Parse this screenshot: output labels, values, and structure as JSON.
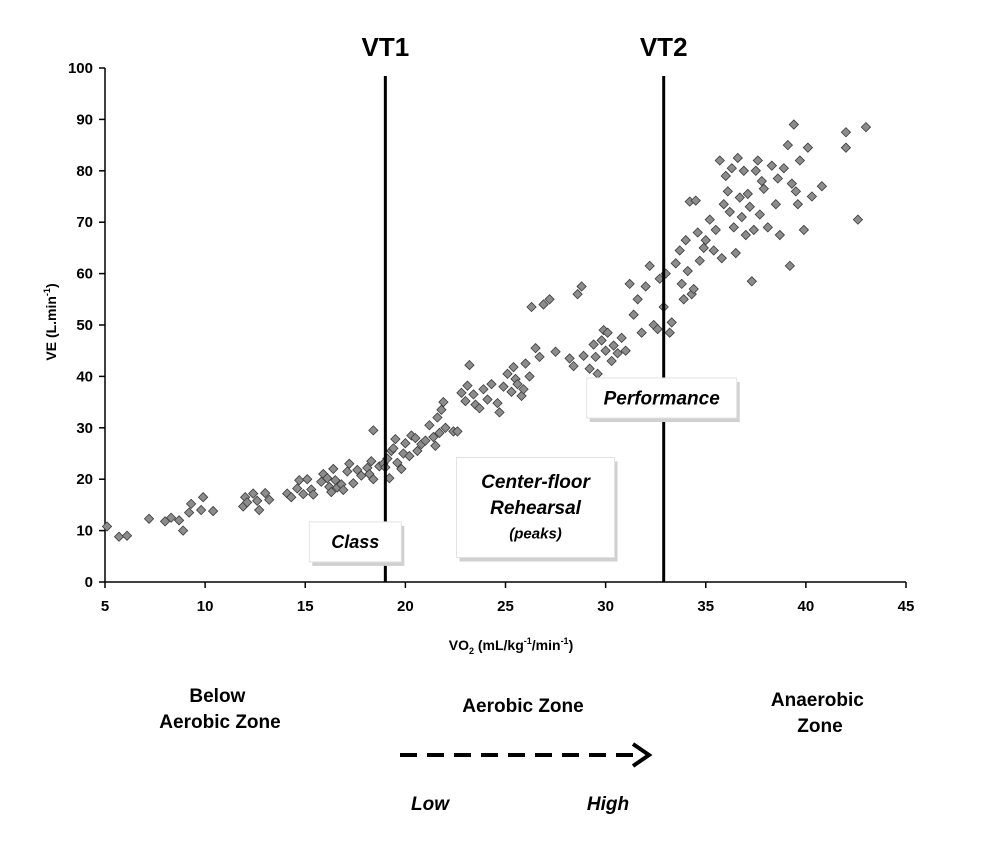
{
  "chart_data": {
    "type": "scatter",
    "xlabel": {
      "base": "VO",
      "sub": "2",
      "rest": " (mL/kg",
      "sup1": "-1",
      "rest2": "/min",
      "sup2": "-1",
      "end": ")"
    },
    "ylabel": {
      "base": "VE (L.min",
      "sup": "-1",
      "end": ")"
    },
    "xlim": [
      5,
      45
    ],
    "ylim": [
      0,
      100
    ],
    "x_ticks": [
      5,
      10,
      15,
      20,
      25,
      30,
      35,
      40,
      45
    ],
    "y_ticks": [
      0,
      10,
      20,
      30,
      40,
      50,
      60,
      70,
      80,
      90,
      100
    ],
    "marker_color": "#8c8c8c",
    "thresholds": [
      {
        "label": "VT1",
        "x": 19.0
      },
      {
        "label": "VT2",
        "x": 32.9
      }
    ],
    "annotations": [
      {
        "lines": [
          "Class"
        ],
        "x": 17.5,
        "y": 7.8
      },
      {
        "lines": [
          "Center-floor",
          "Rehearsal",
          "(peaks)"
        ],
        "x": 26.5,
        "y": 14.5
      },
      {
        "lines": [
          "Performance"
        ],
        "x": 32.8,
        "y": 35.8
      }
    ],
    "zones": [
      {
        "lines": [
          "Below",
          "Aerobic Zone"
        ]
      },
      {
        "lines": [
          "Aerobic Zone"
        ]
      },
      {
        "lines": [
          "Anaerobic",
          "Zone"
        ]
      }
    ],
    "intensity_arrow": {
      "low": "Low",
      "high": "High"
    },
    "points": [
      [
        5.1,
        10.8
      ],
      [
        5.7,
        8.8
      ],
      [
        6.1,
        9.0
      ],
      [
        7.2,
        12.3
      ],
      [
        8.0,
        11.8
      ],
      [
        8.3,
        12.5
      ],
      [
        8.7,
        12.0
      ],
      [
        8.9,
        10.0
      ],
      [
        9.2,
        13.5
      ],
      [
        9.3,
        15.2
      ],
      [
        9.8,
        14.0
      ],
      [
        9.9,
        16.5
      ],
      [
        10.4,
        13.8
      ],
      [
        11.9,
        14.7
      ],
      [
        12.0,
        16.5
      ],
      [
        12.1,
        15.5
      ],
      [
        12.4,
        17.2
      ],
      [
        12.6,
        15.8
      ],
      [
        12.7,
        14.0
      ],
      [
        13.0,
        17.3
      ],
      [
        13.2,
        16.0
      ],
      [
        14.1,
        17.2
      ],
      [
        14.3,
        16.5
      ],
      [
        14.6,
        18.2
      ],
      [
        14.7,
        19.8
      ],
      [
        14.9,
        17.1
      ],
      [
        15.1,
        20.0
      ],
      [
        15.3,
        18.0
      ],
      [
        15.4,
        17.0
      ],
      [
        15.8,
        19.5
      ],
      [
        15.9,
        21.0
      ],
      [
        16.1,
        20.2
      ],
      [
        16.2,
        18.5
      ],
      [
        16.3,
        17.5
      ],
      [
        16.4,
        22.0
      ],
      [
        16.5,
        19.8
      ],
      [
        16.6,
        18.4
      ],
      [
        16.8,
        19.0
      ],
      [
        16.9,
        17.9
      ],
      [
        17.1,
        21.5
      ],
      [
        17.2,
        23.0
      ],
      [
        17.4,
        19.2
      ],
      [
        17.6,
        21.8
      ],
      [
        17.8,
        20.7
      ],
      [
        18.1,
        22.2
      ],
      [
        18.2,
        21.0
      ],
      [
        18.3,
        23.5
      ],
      [
        18.4,
        20.0
      ],
      [
        18.4,
        29.5
      ],
      [
        18.7,
        22.5
      ],
      [
        18.9,
        23.0
      ],
      [
        19.0,
        22.3
      ],
      [
        19.1,
        24.0
      ],
      [
        19.2,
        20.2
      ],
      [
        19.3,
        25.5
      ],
      [
        19.4,
        26.0
      ],
      [
        19.5,
        27.8
      ],
      [
        19.6,
        23.2
      ],
      [
        19.8,
        22.0
      ],
      [
        19.9,
        25.0
      ],
      [
        20.0,
        27.0
      ],
      [
        20.2,
        24.5
      ],
      [
        20.3,
        28.5
      ],
      [
        20.5,
        28.0
      ],
      [
        20.6,
        25.5
      ],
      [
        20.8,
        26.8
      ],
      [
        21.0,
        27.5
      ],
      [
        21.2,
        30.5
      ],
      [
        21.4,
        28.2
      ],
      [
        21.5,
        26.5
      ],
      [
        21.6,
        32.0
      ],
      [
        21.7,
        29.0
      ],
      [
        21.8,
        33.5
      ],
      [
        21.9,
        35.0
      ],
      [
        22.0,
        30.0
      ],
      [
        22.4,
        29.3
      ],
      [
        22.6,
        29.3
      ],
      [
        22.8,
        36.8
      ],
      [
        23.0,
        35.2
      ],
      [
        23.1,
        38.2
      ],
      [
        23.2,
        42.2
      ],
      [
        23.4,
        36.5
      ],
      [
        23.5,
        34.5
      ],
      [
        23.7,
        33.8
      ],
      [
        23.9,
        37.5
      ],
      [
        24.1,
        35.5
      ],
      [
        24.3,
        38.5
      ],
      [
        24.6,
        34.8
      ],
      [
        24.7,
        33.0
      ],
      [
        24.9,
        38.0
      ],
      [
        25.1,
        40.5
      ],
      [
        25.3,
        37.0
      ],
      [
        25.4,
        41.8
      ],
      [
        25.5,
        39.5
      ],
      [
        25.6,
        38.5
      ],
      [
        25.8,
        36.2
      ],
      [
        25.9,
        37.5
      ],
      [
        26.0,
        42.5
      ],
      [
        26.2,
        40.0
      ],
      [
        26.3,
        53.5
      ],
      [
        26.5,
        45.5
      ],
      [
        26.7,
        43.8
      ],
      [
        26.9,
        54.0
      ],
      [
        27.2,
        55.0
      ],
      [
        27.5,
        44.8
      ],
      [
        28.2,
        43.5
      ],
      [
        28.4,
        42.0
      ],
      [
        28.6,
        56.0
      ],
      [
        28.8,
        57.5
      ],
      [
        28.9,
        44.0
      ],
      [
        29.2,
        41.5
      ],
      [
        29.4,
        46.2
      ],
      [
        29.5,
        43.8
      ],
      [
        29.6,
        40.5
      ],
      [
        29.8,
        47.0
      ],
      [
        29.9,
        49.0
      ],
      [
        30.0,
        45.0
      ],
      [
        30.1,
        48.5
      ],
      [
        30.3,
        43.0
      ],
      [
        30.4,
        46.0
      ],
      [
        30.6,
        44.5
      ],
      [
        30.8,
        47.5
      ],
      [
        31.0,
        45.0
      ],
      [
        31.2,
        58.0
      ],
      [
        31.4,
        52.0
      ],
      [
        31.6,
        55.0
      ],
      [
        31.8,
        48.5
      ],
      [
        32.0,
        57.5
      ],
      [
        32.2,
        61.5
      ],
      [
        32.4,
        50.0
      ],
      [
        32.6,
        49.2
      ],
      [
        32.7,
        59.0
      ],
      [
        32.9,
        53.5
      ],
      [
        33.0,
        60.0
      ],
      [
        33.2,
        48.5
      ],
      [
        33.3,
        50.5
      ],
      [
        33.5,
        62.0
      ],
      [
        33.7,
        64.5
      ],
      [
        33.8,
        58.0
      ],
      [
        33.9,
        55.0
      ],
      [
        34.0,
        66.5
      ],
      [
        34.1,
        60.5
      ],
      [
        34.2,
        74.0
      ],
      [
        34.3,
        56.0
      ],
      [
        34.4,
        57.0
      ],
      [
        34.5,
        74.2
      ],
      [
        34.6,
        68.0
      ],
      [
        34.7,
        62.5
      ],
      [
        34.9,
        65.0
      ],
      [
        35.0,
        66.5
      ],
      [
        35.2,
        70.5
      ],
      [
        35.4,
        64.5
      ],
      [
        35.5,
        68.5
      ],
      [
        35.7,
        82.0
      ],
      [
        35.8,
        63.0
      ],
      [
        35.9,
        73.5
      ],
      [
        36.0,
        79.0
      ],
      [
        36.1,
        76.0
      ],
      [
        36.2,
        72.0
      ],
      [
        36.3,
        80.5
      ],
      [
        36.4,
        69.0
      ],
      [
        36.5,
        64.0
      ],
      [
        36.6,
        82.5
      ],
      [
        36.7,
        74.8
      ],
      [
        36.8,
        71.0
      ],
      [
        36.9,
        80.0
      ],
      [
        37.0,
        67.5
      ],
      [
        37.1,
        75.5
      ],
      [
        37.2,
        73.0
      ],
      [
        37.3,
        58.5
      ],
      [
        37.4,
        68.5
      ],
      [
        37.5,
        80.0
      ],
      [
        37.6,
        82.0
      ],
      [
        37.7,
        71.5
      ],
      [
        37.8,
        78.0
      ],
      [
        37.9,
        76.5
      ],
      [
        38.1,
        69.0
      ],
      [
        38.3,
        81.0
      ],
      [
        38.5,
        73.5
      ],
      [
        38.6,
        78.5
      ],
      [
        38.7,
        67.5
      ],
      [
        38.9,
        80.5
      ],
      [
        39.1,
        85.0
      ],
      [
        39.2,
        61.5
      ],
      [
        39.3,
        77.5
      ],
      [
        39.4,
        89.0
      ],
      [
        39.5,
        76.0
      ],
      [
        39.6,
        73.5
      ],
      [
        39.7,
        82.0
      ],
      [
        39.9,
        68.5
      ],
      [
        40.1,
        84.5
      ],
      [
        40.3,
        75.0
      ],
      [
        40.8,
        77.0
      ],
      [
        42.0,
        87.5
      ],
      [
        42.0,
        84.5
      ],
      [
        42.6,
        70.5
      ],
      [
        43.0,
        88.5
      ]
    ]
  }
}
